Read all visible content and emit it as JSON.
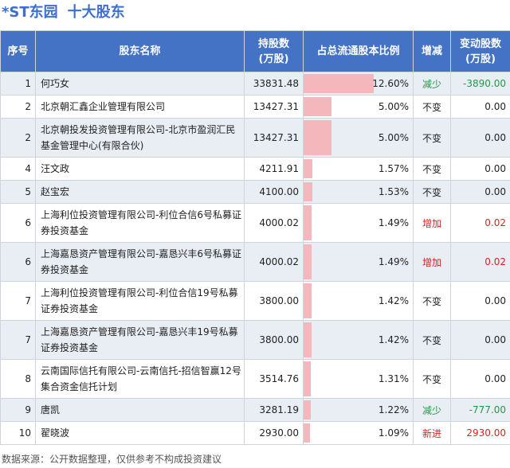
{
  "page": {
    "stock": "*ST东园",
    "title": "十大股东",
    "footer": "数据来源：公开数据整理，仅供参考不构成投资建议"
  },
  "table": {
    "headers": {
      "index": "序号",
      "name": "股东名称",
      "shares": "持股数\n(万股)",
      "ratio": "占总流通股本比例",
      "change": "增减",
      "delta": "变动股数\n(万股)"
    },
    "rows": [
      {
        "index": "1",
        "name": "何巧女",
        "shares": "33831.48",
        "ratio_text": "12.60%",
        "ratio": 12.6,
        "change": "减少",
        "change_type": "dec",
        "delta": "-3890.00"
      },
      {
        "index": "2",
        "name": "北京朝汇鑫企业管理有限公司",
        "shares": "13427.31",
        "ratio_text": "5.00%",
        "ratio": 5.0,
        "change": "不变",
        "change_type": "same",
        "delta": "0.00"
      },
      {
        "index": "2",
        "name": "北京朝投发投资管理有限公司-北京市盈润汇民基金管理中心(有限合伙)",
        "shares": "13427.31",
        "ratio_text": "5.00%",
        "ratio": 5.0,
        "change": "不变",
        "change_type": "same",
        "delta": "0.00"
      },
      {
        "index": "4",
        "name": "汪文政",
        "shares": "4211.91",
        "ratio_text": "1.57%",
        "ratio": 1.57,
        "change": "不变",
        "change_type": "same",
        "delta": "0.00"
      },
      {
        "index": "5",
        "name": "赵宝宏",
        "shares": "4100.00",
        "ratio_text": "1.53%",
        "ratio": 1.53,
        "change": "不变",
        "change_type": "same",
        "delta": "0.00"
      },
      {
        "index": "6",
        "name": "上海利位投资管理有限公司-利位合信6号私募证券投资基金",
        "shares": "4000.02",
        "ratio_text": "1.49%",
        "ratio": 1.49,
        "change": "增加",
        "change_type": "inc",
        "delta": "0.02"
      },
      {
        "index": "6",
        "name": "上海嘉恳资产管理有限公司-嘉恳兴丰6号私募证券投资基金",
        "shares": "4000.02",
        "ratio_text": "1.49%",
        "ratio": 1.49,
        "change": "增加",
        "change_type": "inc",
        "delta": "0.02"
      },
      {
        "index": "7",
        "name": "上海利位投资管理有限公司-利位合信19号私募证券投资基金",
        "shares": "3800.00",
        "ratio_text": "1.42%",
        "ratio": 1.42,
        "change": "不变",
        "change_type": "same",
        "delta": "0.00"
      },
      {
        "index": "7",
        "name": "上海嘉恳资产管理有限公司-嘉恳兴丰19号私募证券投资基金",
        "shares": "3800.00",
        "ratio_text": "1.42%",
        "ratio": 1.42,
        "change": "不变",
        "change_type": "same",
        "delta": "0.00"
      },
      {
        "index": "8",
        "name": "云南国际信托有限公司-云南信托-招信智赢12号集合资金信托计划",
        "shares": "3514.76",
        "ratio_text": "1.31%",
        "ratio": 1.31,
        "change": "不变",
        "change_type": "same",
        "delta": "0.00"
      },
      {
        "index": "9",
        "name": "唐凯",
        "shares": "3281.19",
        "ratio_text": "1.22%",
        "ratio": 1.22,
        "change": "减少",
        "change_type": "dec",
        "delta": "-777.00"
      },
      {
        "index": "10",
        "name": "翟晓波",
        "shares": "2930.00",
        "ratio_text": "1.09%",
        "ratio": 1.09,
        "change": "新进",
        "change_type": "new",
        "delta": "2930.00"
      }
    ],
    "ratio_scale_max": 12.6,
    "colors": {
      "header_bg": "#4472c4",
      "bar": "#f4b8bc",
      "increase": "#e02020",
      "decrease": "#1f9a48",
      "title": "#3d6fcf"
    }
  }
}
